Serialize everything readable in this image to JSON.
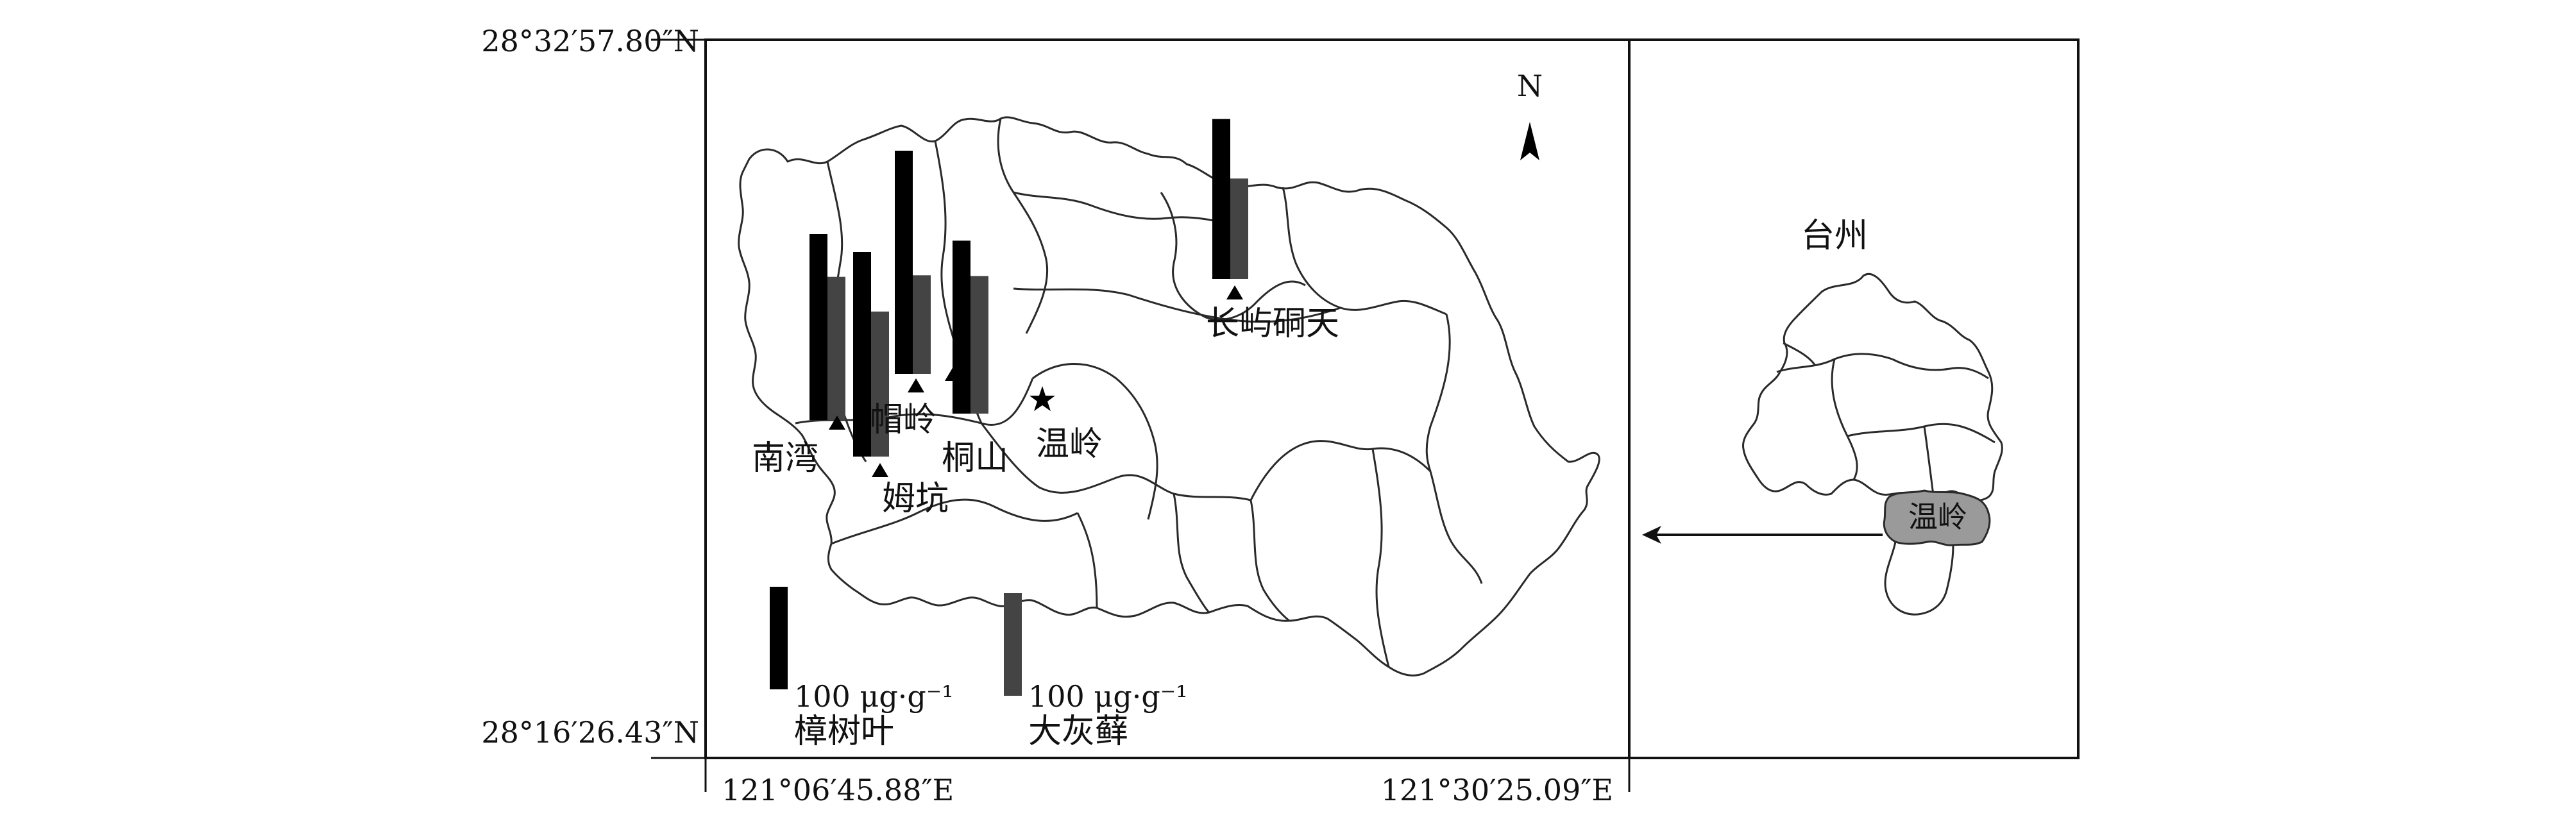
{
  "coordinates": {
    "lat_top": "28°32′57.80″N",
    "lat_bottom": "28°16′26.43″N",
    "lon_left": "121°06′45.88″E",
    "lon_right": "121°30′25.09″E"
  },
  "north_label": "N",
  "sites": [
    {
      "name": "南湾",
      "camphor": 100,
      "moss": 77
    },
    {
      "name": "姆坑",
      "camphor": 110,
      "moss": 78
    },
    {
      "name": "帽岭",
      "camphor": 120,
      "moss": 53
    },
    {
      "name": "桐山",
      "camphor": 93,
      "moss": 74
    },
    {
      "name": "长屿硐天",
      "camphor": 86,
      "moss": 54
    }
  ],
  "town": {
    "name": "温岭"
  },
  "legend": {
    "camphor": {
      "value": "100 μg·g⁻¹",
      "name": "樟树叶",
      "color": "#000000"
    },
    "moss": {
      "value": "100 μg·g⁻¹",
      "name": "大灰藓",
      "color": "#444444"
    }
  },
  "inset": {
    "city_label": "台州",
    "highlight_label": "温岭",
    "highlight_color": "#9a9a9a"
  }
}
